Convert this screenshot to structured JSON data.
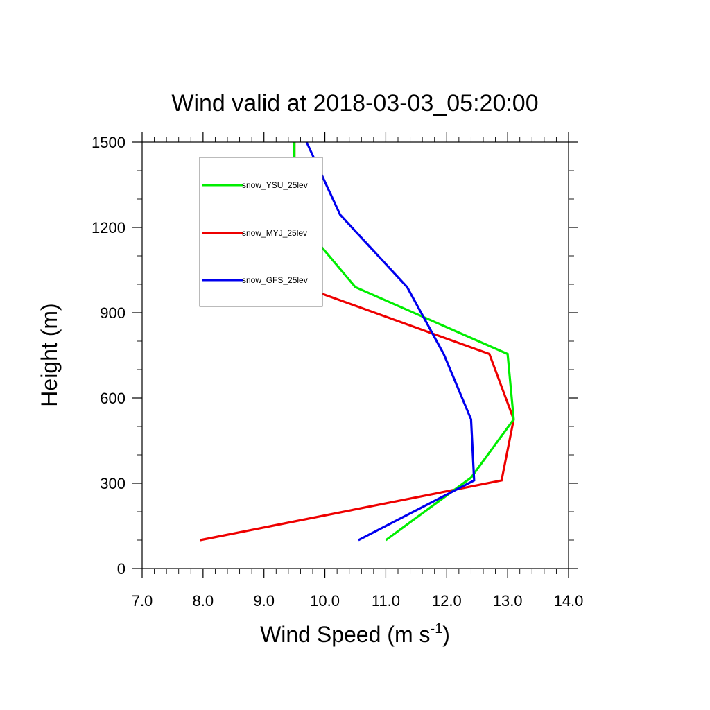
{
  "chart_data": {
    "type": "line",
    "title": "Wind valid at 2018-03-03_05:20:00",
    "xlabel": {
      "main": "Wind Speed (m s",
      "superscript": "-1",
      "suffix": ")"
    },
    "ylabel": "Height (m)",
    "xlim": [
      7.0,
      14.0
    ],
    "ylim": [
      0,
      1500
    ],
    "x_ticks": [
      "7.0",
      "8.0",
      "9.0",
      "10.0",
      "11.0",
      "12.0",
      "13.0",
      "14.0"
    ],
    "y_ticks": [
      "0",
      "300",
      "600",
      "900",
      "1200",
      "1500"
    ],
    "legend_position": "top-left",
    "series": [
      {
        "name": "snow_YSU_25lev",
        "color": "#00ee00",
        "points": [
          [
            11.0,
            100
          ],
          [
            12.4,
            320
          ],
          [
            13.1,
            525
          ],
          [
            13.0,
            755
          ],
          [
            10.5,
            990
          ],
          [
            9.5,
            1245
          ],
          [
            9.5,
            1500
          ]
        ]
      },
      {
        "name": "snow_MYJ_25lev",
        "color": "#ee0000",
        "points": [
          [
            7.95,
            100
          ],
          [
            12.9,
            310
          ],
          [
            13.1,
            525
          ],
          [
            12.7,
            755
          ],
          [
            9.65,
            990
          ],
          [
            9.5,
            1245
          ],
          [
            9.5,
            1500
          ]
        ]
      },
      {
        "name": "snow_GFS_25lev",
        "color": "#0000ee",
        "points": [
          [
            10.55,
            100
          ],
          [
            12.45,
            310
          ],
          [
            12.4,
            525
          ],
          [
            11.95,
            755
          ],
          [
            11.35,
            990
          ],
          [
            10.25,
            1245
          ],
          [
            9.7,
            1500
          ]
        ]
      }
    ]
  }
}
